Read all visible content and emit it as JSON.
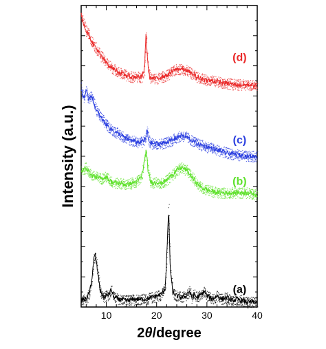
{
  "chart_data": {
    "type": "line",
    "xlabel_main": "2",
    "xlabel_theta": "θ",
    "xlabel_rest": "/degree",
    "ylabel": "Intensity (a.u.)",
    "xlim": [
      5,
      40
    ],
    "xticks": [
      10,
      20,
      30,
      40
    ],
    "grid": false,
    "series": [
      {
        "name": "(a)",
        "color": "#000000",
        "points": [
          [
            5,
            0.04
          ],
          [
            6,
            0.05
          ],
          [
            6.5,
            0.08
          ],
          [
            7,
            0.14
          ],
          [
            7.5,
            0.3
          ],
          [
            7.8,
            0.33
          ],
          [
            8.2,
            0.24
          ],
          [
            8.8,
            0.1
          ],
          [
            9.5,
            0.06
          ],
          [
            10.5,
            0.08
          ],
          [
            11,
            0.11
          ],
          [
            11.5,
            0.06
          ],
          [
            12.5,
            0.05
          ],
          [
            14,
            0.04
          ],
          [
            16,
            0.05
          ],
          [
            18,
            0.05
          ],
          [
            20,
            0.07
          ],
          [
            21,
            0.08
          ],
          [
            21.7,
            0.12
          ],
          [
            22.1,
            0.38
          ],
          [
            22.4,
            0.62
          ],
          [
            22.7,
            0.25
          ],
          [
            23.2,
            0.09
          ],
          [
            24,
            0.07
          ],
          [
            25,
            0.06
          ],
          [
            26,
            0.07
          ],
          [
            26.5,
            0.1
          ],
          [
            27,
            0.06
          ],
          [
            27.5,
            0.08
          ],
          [
            28,
            0.06
          ],
          [
            29,
            0.08
          ],
          [
            29.5,
            0.1
          ],
          [
            30,
            0.07
          ],
          [
            31,
            0.05
          ],
          [
            32,
            0.07
          ],
          [
            33,
            0.05
          ],
          [
            34,
            0.06
          ],
          [
            35,
            0.04
          ],
          [
            36,
            0.05
          ],
          [
            38,
            0.03
          ],
          [
            40,
            0.03
          ]
        ]
      },
      {
        "name": "(b)",
        "color": "#5ee12b",
        "points": [
          [
            5,
            0.85
          ],
          [
            6,
            0.88
          ],
          [
            7,
            0.83
          ],
          [
            8,
            0.82
          ],
          [
            9,
            0.81
          ],
          [
            10,
            0.82
          ],
          [
            11,
            0.79
          ],
          [
            12,
            0.78
          ],
          [
            13,
            0.78
          ],
          [
            14,
            0.77
          ],
          [
            15,
            0.78
          ],
          [
            16,
            0.79
          ],
          [
            17,
            0.82
          ],
          [
            17.5,
            0.9
          ],
          [
            17.9,
            0.99
          ],
          [
            18.3,
            0.86
          ],
          [
            18.8,
            0.79
          ],
          [
            19.5,
            0.78
          ],
          [
            20,
            0.79
          ],
          [
            21,
            0.78
          ],
          [
            22,
            0.8
          ],
          [
            23,
            0.83
          ],
          [
            24,
            0.86
          ],
          [
            25,
            0.88
          ],
          [
            26,
            0.86
          ],
          [
            27,
            0.82
          ],
          [
            28,
            0.78
          ],
          [
            29,
            0.75
          ],
          [
            30,
            0.74
          ],
          [
            32,
            0.72
          ],
          [
            34,
            0.72
          ],
          [
            36,
            0.72
          ],
          [
            38,
            0.72
          ],
          [
            40,
            0.71
          ]
        ]
      },
      {
        "name": "(c)",
        "color": "#2b3fe0",
        "points": [
          [
            5,
            1.38
          ],
          [
            5.5,
            1.32
          ],
          [
            6,
            1.36
          ],
          [
            6.5,
            1.31
          ],
          [
            7,
            1.34
          ],
          [
            7.5,
            1.29
          ],
          [
            8,
            1.24
          ],
          [
            9,
            1.19
          ],
          [
            10,
            1.15
          ],
          [
            11,
            1.12
          ],
          [
            12,
            1.1
          ],
          [
            13,
            1.08
          ],
          [
            14,
            1.06
          ],
          [
            15,
            1.05
          ],
          [
            16,
            1.04
          ],
          [
            17,
            1.04
          ],
          [
            17.8,
            1.06
          ],
          [
            18.1,
            1.12
          ],
          [
            18.4,
            1.05
          ],
          [
            19,
            1.03
          ],
          [
            20,
            1.03
          ],
          [
            21,
            1.03
          ],
          [
            22,
            1.04
          ],
          [
            23,
            1.05
          ],
          [
            24,
            1.07
          ],
          [
            25,
            1.08
          ],
          [
            26,
            1.07
          ],
          [
            27,
            1.05
          ],
          [
            28,
            1.03
          ],
          [
            30,
            1.01
          ],
          [
            32,
            0.99
          ],
          [
            34,
            0.97
          ],
          [
            36,
            0.96
          ],
          [
            38,
            0.95
          ],
          [
            40,
            0.95
          ]
        ]
      },
      {
        "name": "(d)",
        "color": "#ea2a2a",
        "points": [
          [
            5,
            1.84
          ],
          [
            5.5,
            1.79
          ],
          [
            6,
            1.74
          ],
          [
            6.5,
            1.72
          ],
          [
            7,
            1.68
          ],
          [
            8,
            1.63
          ],
          [
            9,
            1.58
          ],
          [
            10,
            1.54
          ],
          [
            11,
            1.51
          ],
          [
            12,
            1.49
          ],
          [
            13,
            1.47
          ],
          [
            14,
            1.46
          ],
          [
            15,
            1.45
          ],
          [
            16,
            1.45
          ],
          [
            17,
            1.45
          ],
          [
            17.6,
            1.5
          ],
          [
            17.9,
            1.73
          ],
          [
            18.2,
            1.55
          ],
          [
            18.6,
            1.45
          ],
          [
            19,
            1.44
          ],
          [
            20,
            1.44
          ],
          [
            21,
            1.45
          ],
          [
            22,
            1.46
          ],
          [
            23,
            1.48
          ],
          [
            24,
            1.5
          ],
          [
            25,
            1.5
          ],
          [
            26,
            1.49
          ],
          [
            27,
            1.47
          ],
          [
            28,
            1.45
          ],
          [
            30,
            1.43
          ],
          [
            32,
            1.42
          ],
          [
            34,
            1.41
          ],
          [
            36,
            1.4
          ],
          [
            38,
            1.4
          ],
          [
            40,
            1.4
          ]
        ]
      }
    ],
    "series_labels": [
      {
        "text": "(a)",
        "x": 36.5,
        "y": 0.09,
        "color": "#000000"
      },
      {
        "text": "(b)",
        "x": 36.5,
        "y": 0.77,
        "color": "#5ee12b"
      },
      {
        "text": "(c)",
        "x": 36.5,
        "y": 1.03,
        "color": "#2b3fe0"
      },
      {
        "text": "(d)",
        "x": 36.5,
        "y": 1.55,
        "color": "#ea2a2a"
      }
    ]
  }
}
